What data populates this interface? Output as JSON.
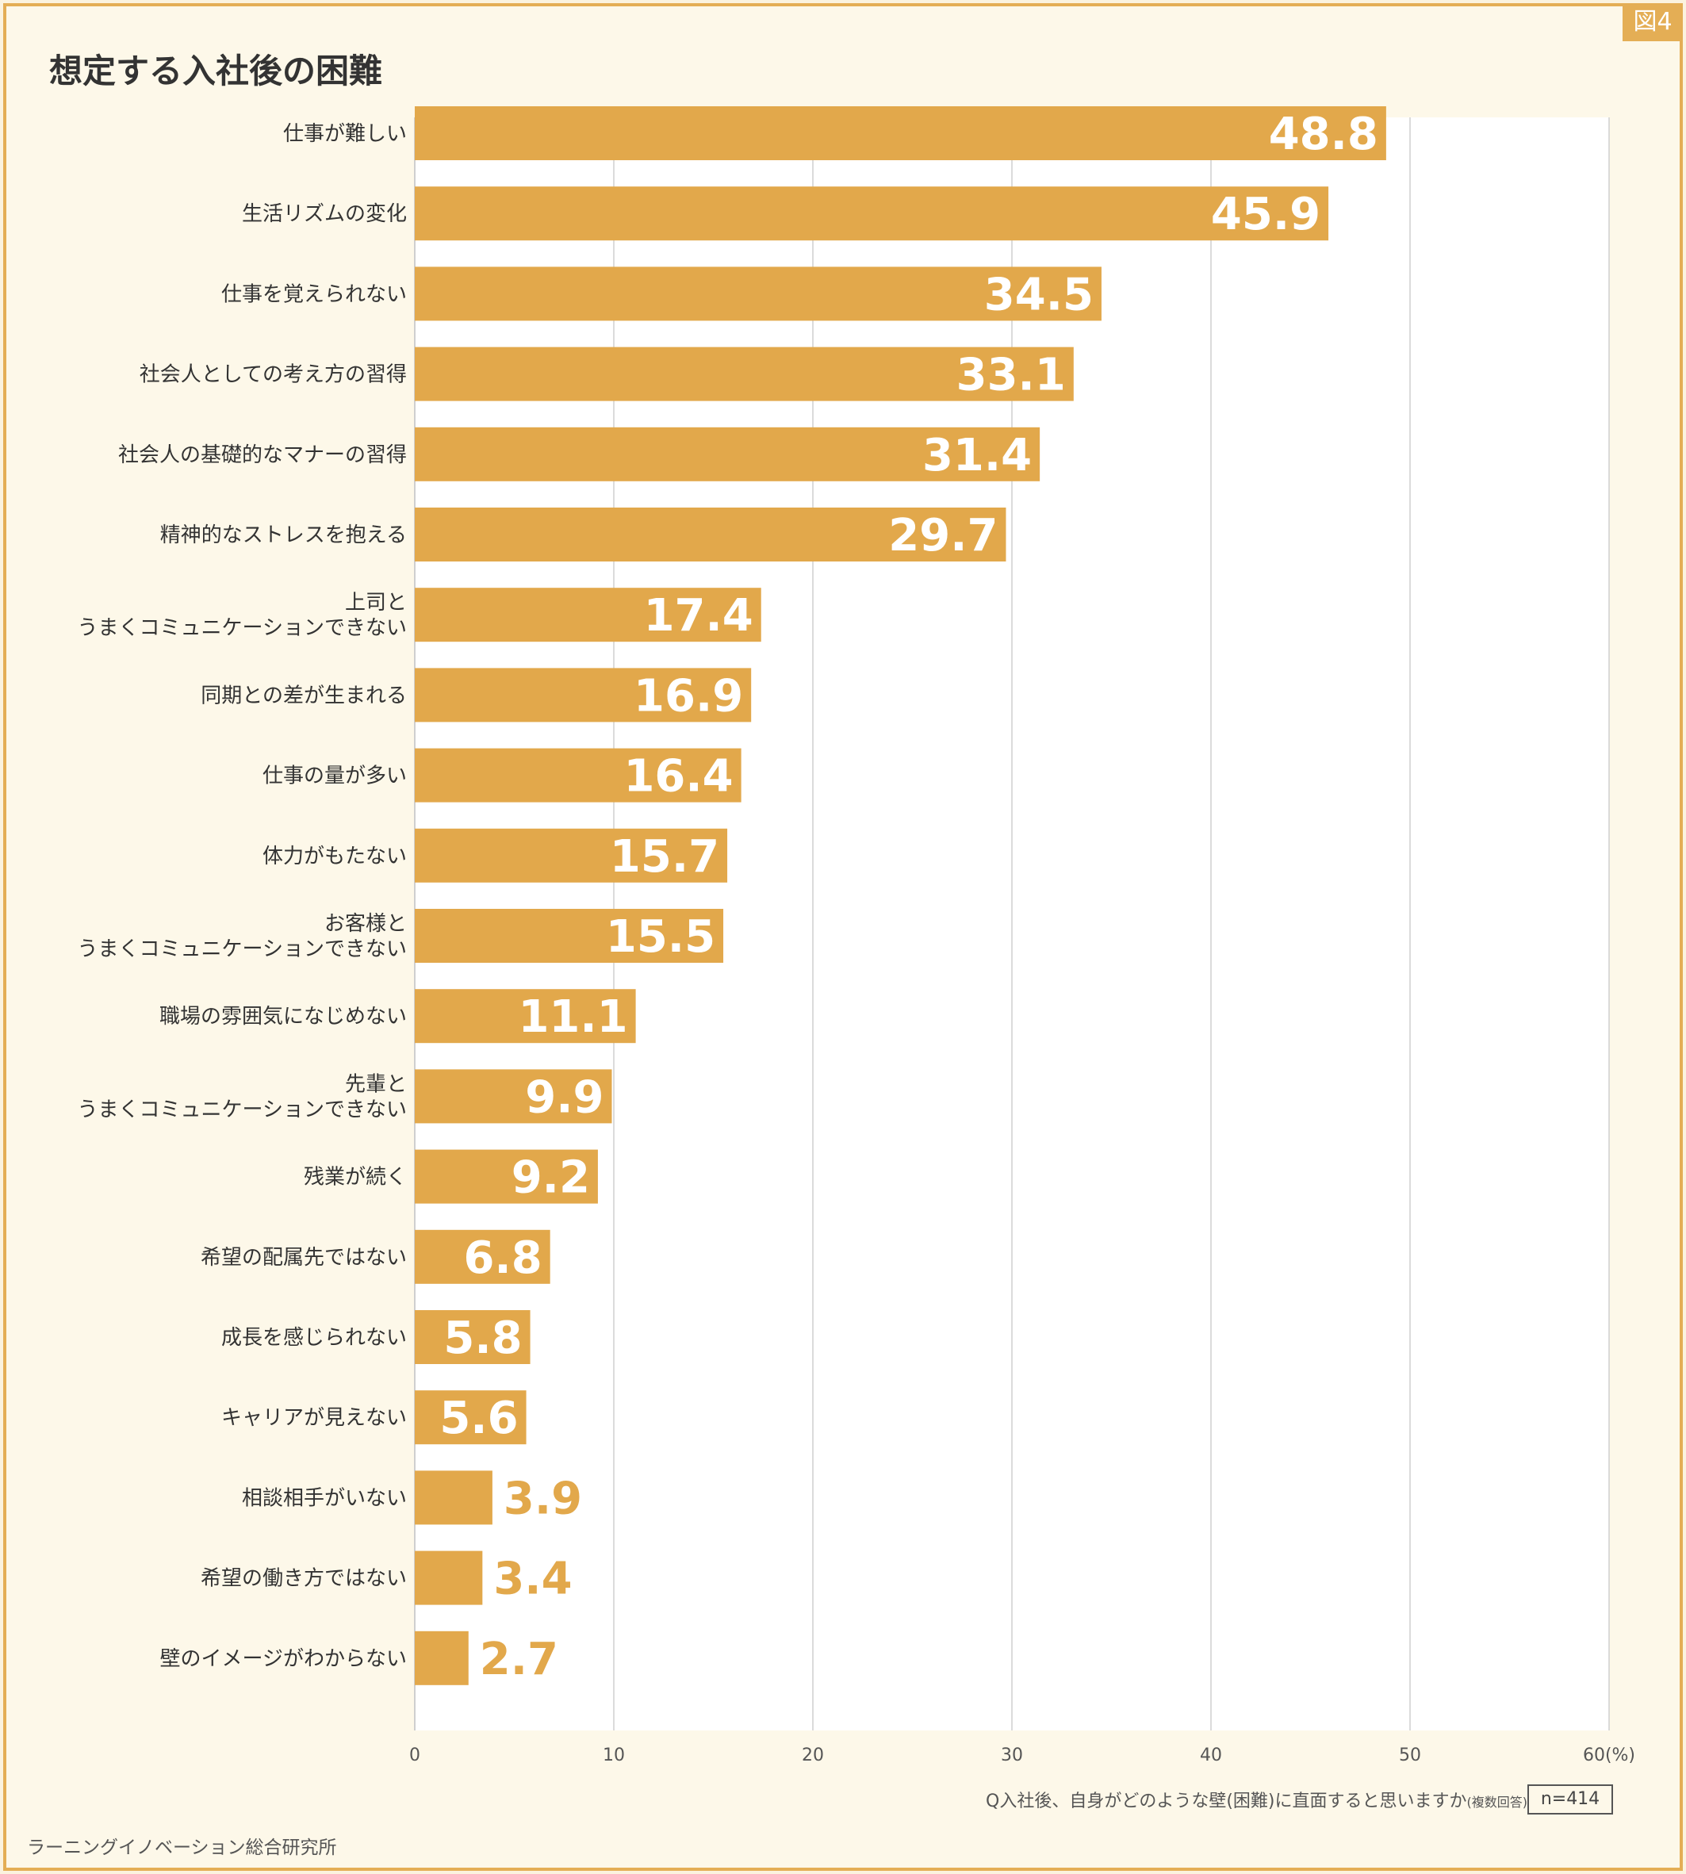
{
  "figure_tag": "図4",
  "title": "想定する入社後の困難",
  "question": "Q入社後、自身がどのような壁(困難)に直面すると思いますか",
  "question_note": "(複数回答)",
  "sample_size": "n=414",
  "source": "ラーニングイノベーション総合研究所",
  "colors": {
    "bar": "#e2a84b",
    "label_inside": "#ffffff",
    "label_outside": "#e2a84b",
    "grid": "#cfcfcf"
  },
  "chart_data": {
    "type": "bar",
    "orientation": "horizontal",
    "categories": [
      "仕事が難しい",
      "生活リズムの変化",
      "仕事を覚えられない",
      "社会人としての考え方の習得",
      "社会人の基礎的なマナーの習得",
      "精神的なストレスを抱える",
      "上司と\nうまくコミュニケーションできない",
      "同期との差が生まれる",
      "仕事の量が多い",
      "体力がもたない",
      "お客様と\nうまくコミュニケーションできない",
      "職場の雰囲気になじめない",
      "先輩と\nうまくコミュニケーションできない",
      "残業が続く",
      "希望の配属先ではない",
      "成長を感じられない",
      "キャリアが見えない",
      "相談相手がいない",
      "希望の働き方ではない",
      "壁のイメージがわからない"
    ],
    "values": [
      48.8,
      45.9,
      34.5,
      33.1,
      31.4,
      29.7,
      17.4,
      16.9,
      16.4,
      15.7,
      15.5,
      11.1,
      9.9,
      9.2,
      6.8,
      5.8,
      5.6,
      3.9,
      3.4,
      2.7
    ],
    "value_labels": [
      "48.8",
      "45.9",
      "34.5",
      "33.1",
      "31.4",
      "29.7",
      "17.4",
      "16.9",
      "16.4",
      "15.7",
      "15.5",
      "11.1",
      "9.9",
      "9.2",
      "6.8",
      "5.8",
      "5.6",
      "3.9",
      "3.4",
      "2.7"
    ],
    "xlim": [
      0,
      60
    ],
    "x_ticks": [
      "0",
      "10",
      "20",
      "30",
      "40",
      "50",
      "60(%)"
    ],
    "grid": true
  }
}
